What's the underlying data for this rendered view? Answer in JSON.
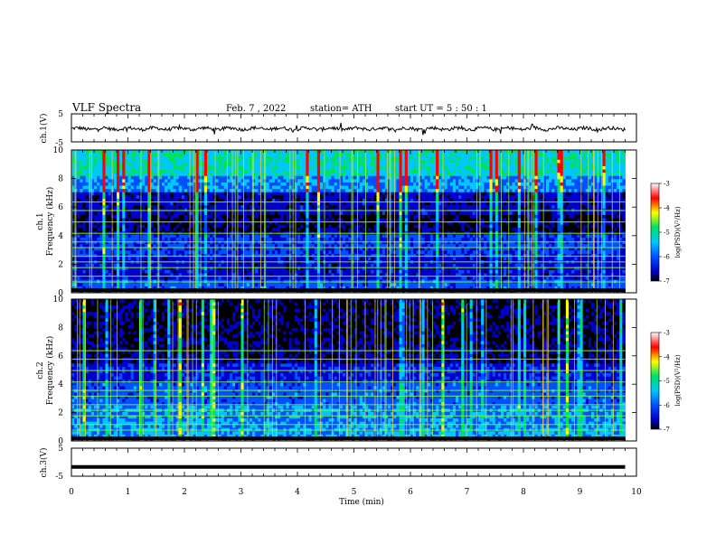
{
  "header": {
    "title": "VLF  Spectra",
    "date": "Feb. 7  , 2022",
    "station": "station= ATH",
    "start": "start  UT  =   5  : 50 : 1"
  },
  "chart_data": [
    {
      "type": "line",
      "panel": "ch1-waveform",
      "ylabel": "ch.1(V)",
      "ylim": [
        -5,
        5
      ],
      "yticks": [
        "5",
        "-5"
      ],
      "xlim": [
        0,
        10
      ],
      "mean": -0.3,
      "spread": 0.6
    },
    {
      "type": "heatmap",
      "panel": "ch1-spectrogram",
      "ylabel_top": "ch.1",
      "ylabel": "Frequency  (kHz)",
      "ylim": [
        0,
        10
      ],
      "yticks": [
        "0",
        "2",
        "4",
        "6",
        "8",
        "10"
      ],
      "xlim": [
        0,
        9.8
      ],
      "colorbar": {
        "label": "log(PSD)(V²/Hz)",
        "range": [
          -7,
          -3
        ],
        "ticks": [
          "-3",
          "-4",
          "-5",
          "-6",
          "-7"
        ]
      }
    },
    {
      "type": "heatmap",
      "panel": "ch2-spectrogram",
      "ylabel_top": "ch.2",
      "ylabel": "Frequency  (kHz)",
      "ylim": [
        0,
        10
      ],
      "yticks": [
        "0",
        "2",
        "4",
        "6",
        "8",
        "10"
      ],
      "xlim": [
        0,
        9.8
      ],
      "colorbar": {
        "label": "log(PSD)(V²/Hz)",
        "range": [
          -7,
          -3
        ],
        "ticks": [
          "-3",
          "-4",
          "-5",
          "-6",
          "-7"
        ]
      }
    },
    {
      "type": "line",
      "panel": "ch3-waveform",
      "ylabel": "ch.3(V)",
      "ylim": [
        -5,
        5
      ],
      "yticks": [
        "5",
        "-5"
      ],
      "xlim": [
        0,
        10
      ],
      "mean": -1.7,
      "spread": 0.0
    }
  ],
  "xaxis": {
    "label": "Time  (min)",
    "ticks": [
      "0",
      "1",
      "2",
      "3",
      "4",
      "5",
      "6",
      "7",
      "8",
      "9",
      "10"
    ]
  },
  "colors": {
    "scale": [
      "#000000",
      "#0000c8",
      "#0050ff",
      "#00c8ff",
      "#00e060",
      "#ffff00",
      "#ff0000",
      "#ffffff"
    ]
  }
}
